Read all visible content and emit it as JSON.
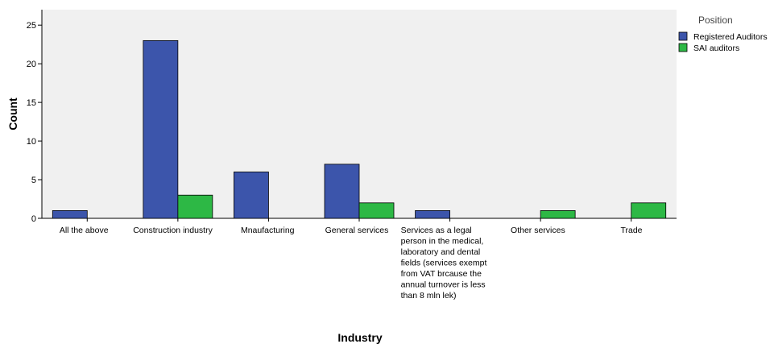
{
  "chart_data": {
    "type": "bar",
    "title": "",
    "xlabel": "Industry",
    "ylabel": "Count",
    "ylim": [
      0,
      27
    ],
    "yticks": [
      0,
      5,
      10,
      15,
      20,
      25
    ],
    "grid": false,
    "legend": {
      "title": "Position",
      "placement": "top-right"
    },
    "categories": [
      [
        "All the above"
      ],
      [
        "Construction industry"
      ],
      [
        "Mnaufacturing"
      ],
      [
        "General services"
      ],
      [
        "Services as a legal",
        "person in the medical,",
        "laboratory and dental",
        "fields (services exempt",
        "from VAT brcause the",
        "annual turnover is less",
        "than 8 mln lek)"
      ],
      [
        "Other services"
      ],
      [
        "Trade"
      ]
    ],
    "series": [
      {
        "name": "Registered Auditors",
        "color": "#3c55ab",
        "values": [
          1,
          23,
          6,
          7,
          1,
          0,
          0
        ]
      },
      {
        "name": "SAI auditors",
        "color": "#2db845",
        "values": [
          0,
          3,
          0,
          2,
          0,
          1,
          2
        ]
      }
    ]
  }
}
